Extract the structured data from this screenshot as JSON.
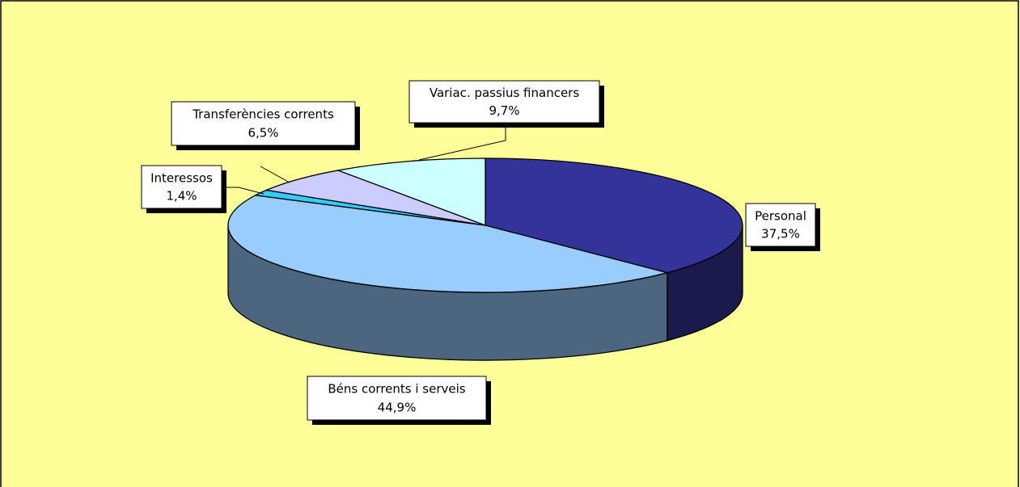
{
  "chart_data": {
    "type": "pie",
    "categories": [
      "Personal",
      "Béns corrents i serveis",
      "Interessos",
      "Transferències corrents",
      "Variac. passius financers"
    ],
    "values": [
      37.5,
      44.9,
      1.4,
      6.5,
      9.7
    ],
    "value_labels": [
      "37,5%",
      "44,9%",
      "1,4%",
      "6,5%",
      "9,7%"
    ],
    "colors": [
      "#333399",
      "#99ccff",
      "#33ccff",
      "#ccccff",
      "#ccffff"
    ],
    "background": "#ffff99"
  }
}
